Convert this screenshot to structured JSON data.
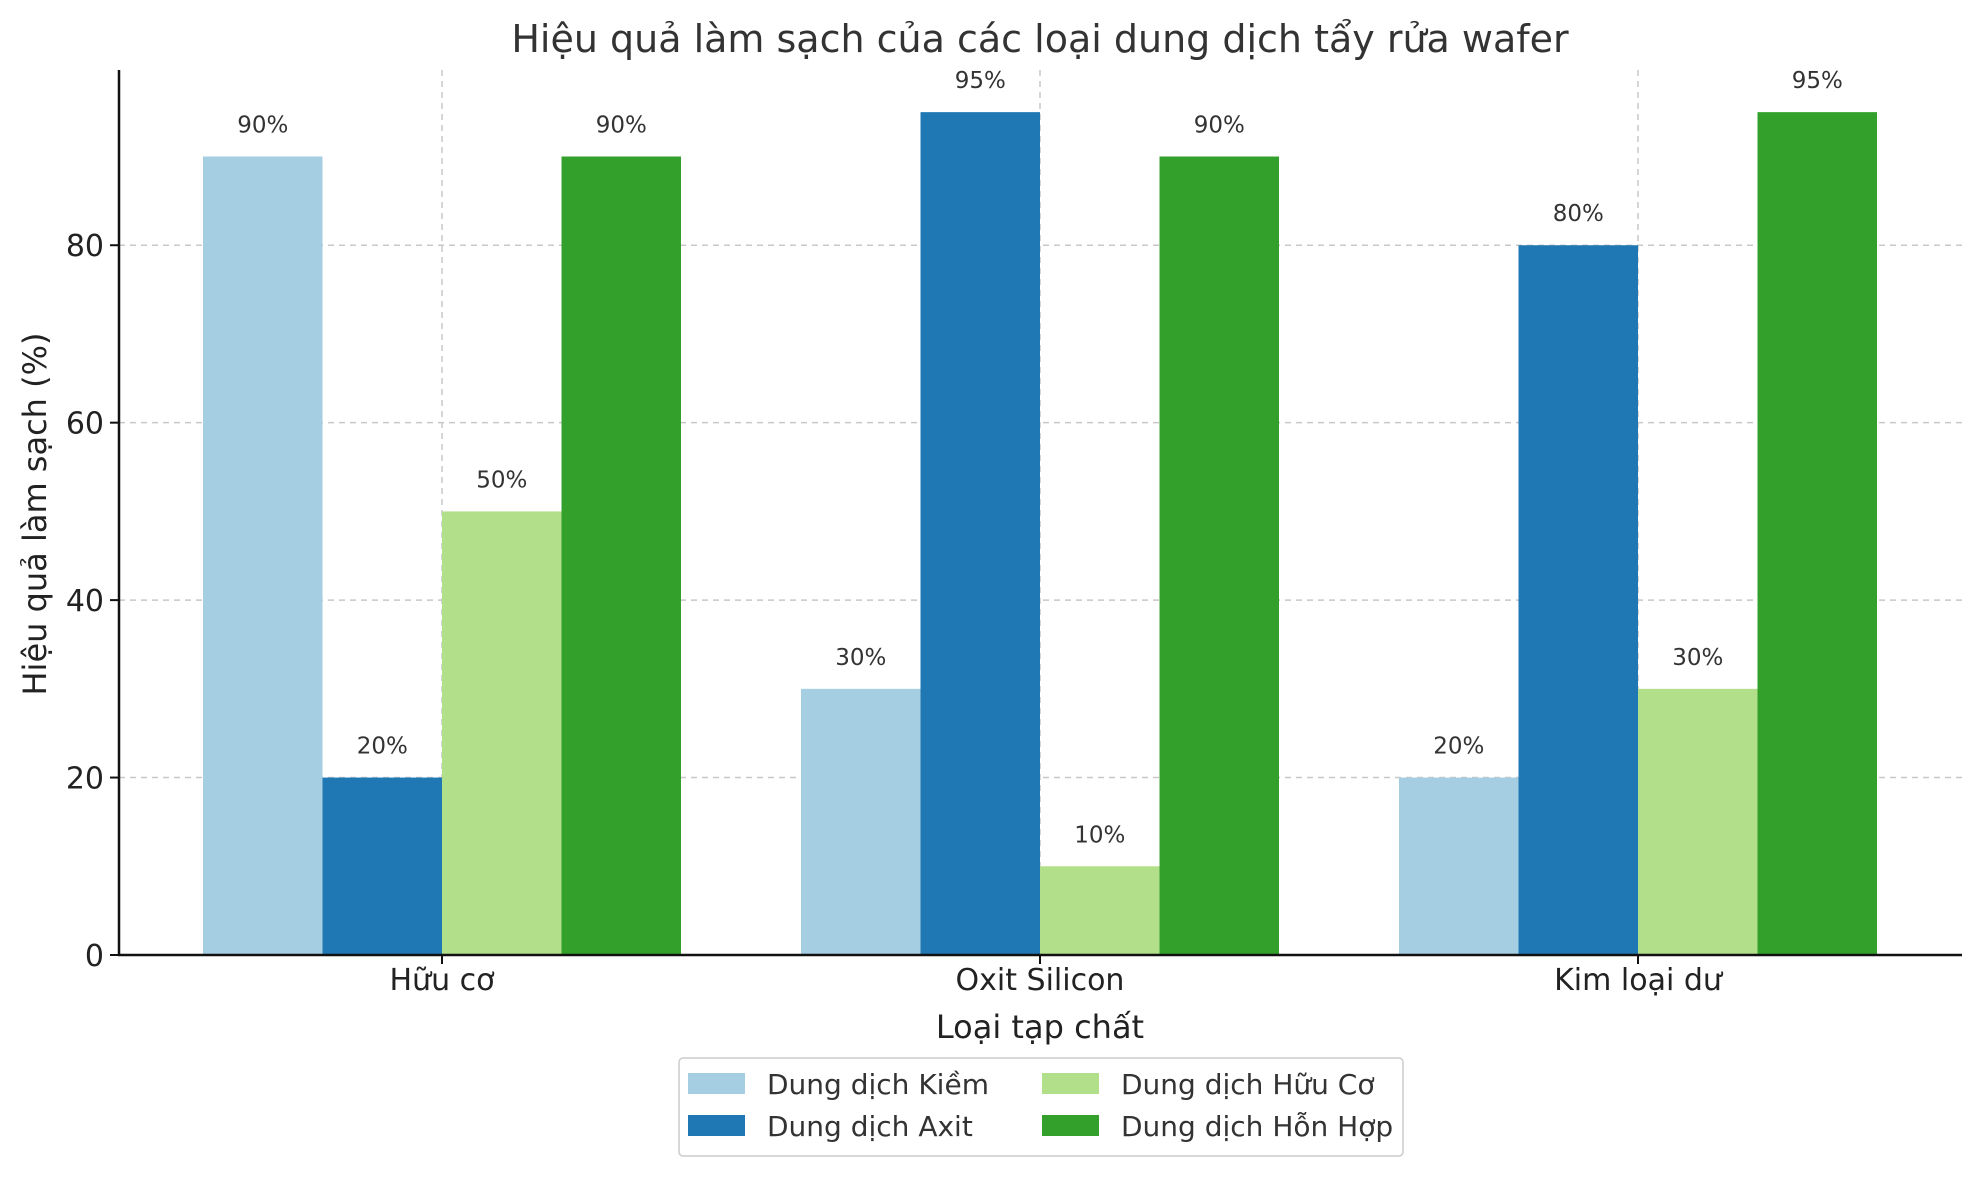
{
  "chart_data": {
    "type": "bar",
    "title": "Hiệu quả làm sạch của các loại dung dịch tẩy rửa wafer",
    "xlabel": "Loại tạp chất",
    "ylabel": "Hiệu quả làm sạch (%)",
    "categories": [
      "Hữu cơ",
      "Oxit Silicon",
      "Kim loại dư"
    ],
    "series": [
      {
        "name": "Dung dịch Kiềm",
        "color": "#a6cee3",
        "values": [
          90,
          30,
          20
        ]
      },
      {
        "name": "Dung dịch Axit",
        "color": "#1f78b4",
        "values": [
          20,
          95,
          80
        ]
      },
      {
        "name": "Dung dịch Hữu Cơ",
        "color": "#b2df8a",
        "values": [
          50,
          10,
          30
        ]
      },
      {
        "name": "Dung dịch Hỗn Hợp",
        "color": "#33a02c",
        "values": [
          90,
          90,
          95
        ]
      }
    ],
    "data_labels": [
      [
        "90%",
        "30%",
        "20%"
      ],
      [
        "20%",
        "95%",
        "80%"
      ],
      [
        "50%",
        "10%",
        "30%"
      ],
      [
        "90%",
        "90%",
        "95%"
      ]
    ],
    "yticks": [
      "0",
      "20",
      "40",
      "60",
      "80"
    ],
    "ylim": [
      0,
      99.75
    ],
    "grid": true,
    "legend_position": "bottom-center"
  }
}
